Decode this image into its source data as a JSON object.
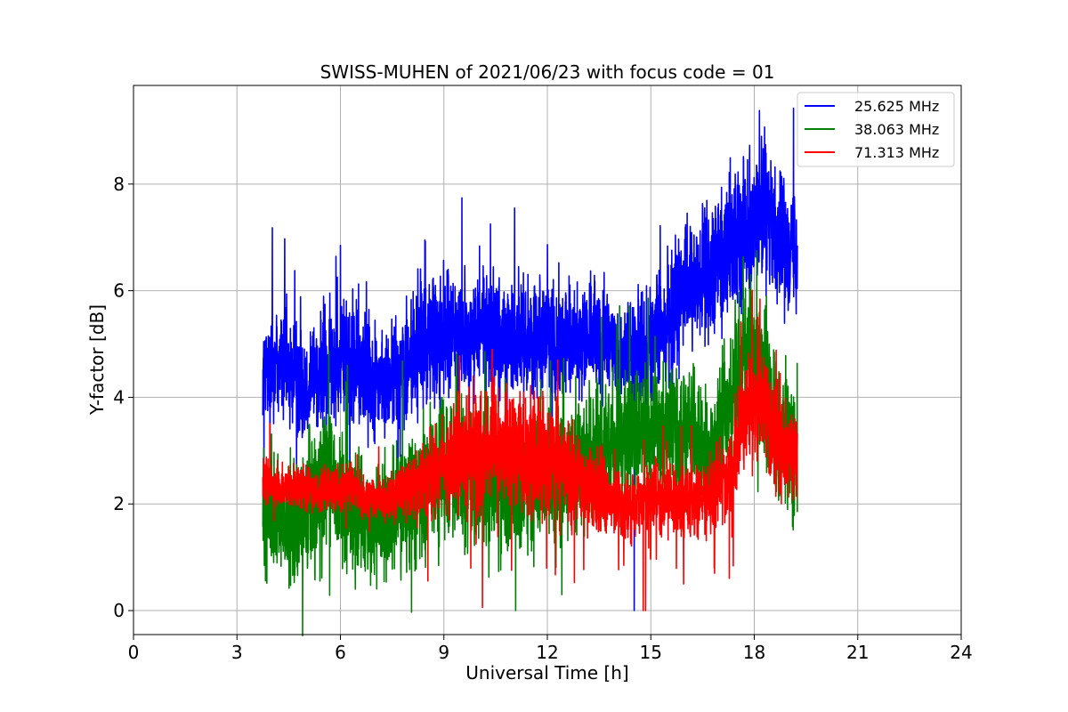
{
  "chart_data": {
    "type": "line",
    "title": "SWISS-MUHEN of 2021/06/23 with focus code = 01",
    "xlabel": "Universal Time [h]",
    "ylabel": "Y-factor [dB]",
    "xlim": [
      0,
      24
    ],
    "ylim": [
      -0.45,
      9.85
    ],
    "xticks": [
      0,
      3,
      6,
      9,
      12,
      15,
      18,
      21,
      24
    ],
    "yticks": [
      0,
      2,
      4,
      6,
      8
    ],
    "grid": true,
    "legend_position": "top-right",
    "series": [
      {
        "name": "25.625 MHz",
        "color": "#0000ff",
        "x": [
          3.75,
          4.25,
          4.75,
          5.25,
          5.75,
          6.25,
          6.75,
          7.25,
          7.75,
          8.25,
          8.75,
          9.25,
          9.75,
          10.25,
          10.75,
          11.25,
          11.75,
          12.25,
          12.75,
          13.25,
          13.75,
          14.25,
          14.75,
          15.25,
          15.75,
          16.25,
          16.75,
          17.25,
          17.75,
          18.25,
          18.75,
          19.25
        ],
        "y": [
          4.5,
          4.7,
          4.3,
          4.4,
          4.6,
          4.7,
          4.4,
          4.2,
          4.5,
          4.9,
          5.2,
          5.2,
          5.1,
          5.3,
          5.0,
          5.1,
          5.2,
          5.0,
          5.0,
          5.1,
          5.0,
          4.8,
          4.9,
          5.2,
          5.8,
          6.2,
          6.3,
          6.9,
          7.2,
          7.5,
          7.0,
          6.8
        ],
        "spread": [
          0.7,
          0.9,
          0.8,
          0.8,
          0.8,
          0.9,
          0.8,
          0.7,
          0.8,
          0.9,
          0.9,
          0.9,
          0.8,
          0.9,
          0.8,
          0.8,
          0.8,
          0.8,
          0.7,
          0.8,
          0.7,
          0.7,
          0.8,
          0.8,
          0.9,
          0.9,
          0.9,
          0.9,
          1.0,
          1.0,
          0.9,
          0.8
        ],
        "extremes": [
          [
            11.05,
            7.55
          ],
          [
            14.52,
            0.0
          ],
          [
            18.15,
            9.38
          ],
          [
            10.35,
            7.25
          ],
          [
            8.45,
            6.95
          ],
          [
            6.0,
            6.85
          ]
        ]
      },
      {
        "name": "38.063 MHz",
        "color": "#008000",
        "x": [
          3.75,
          4.25,
          4.75,
          5.25,
          5.75,
          6.25,
          6.75,
          7.25,
          7.75,
          8.25,
          8.75,
          9.25,
          9.75,
          10.25,
          10.75,
          11.25,
          11.75,
          12.25,
          12.75,
          13.25,
          13.75,
          14.25,
          14.75,
          15.25,
          15.75,
          16.25,
          16.75,
          17.25,
          17.75,
          18.25,
          18.75,
          19.25
        ],
        "y": [
          2.0,
          1.6,
          1.6,
          2.2,
          2.5,
          2.0,
          1.6,
          1.7,
          1.9,
          2.2,
          2.5,
          2.6,
          2.5,
          2.4,
          2.4,
          2.5,
          2.3,
          2.6,
          2.6,
          3.0,
          3.1,
          3.2,
          3.3,
          3.4,
          3.3,
          3.2,
          3.1,
          3.9,
          4.8,
          4.4,
          3.2,
          3.0
        ],
        "spread": [
          0.9,
          0.8,
          0.8,
          1.0,
          1.0,
          0.9,
          0.8,
          0.8,
          0.9,
          0.9,
          1.0,
          1.0,
          1.0,
          0.9,
          0.9,
          1.0,
          0.9,
          1.0,
          0.9,
          0.9,
          0.9,
          0.9,
          0.9,
          0.9,
          0.9,
          0.9,
          0.8,
          0.9,
          1.0,
          1.0,
          0.9,
          0.9
        ],
        "extremes": [
          [
            11.08,
            0.0
          ],
          [
            12.42,
            0.3
          ],
          [
            17.9,
            6.3
          ],
          [
            18.35,
            5.9
          ],
          [
            6.2,
            4.6
          ],
          [
            9.35,
            4.4
          ]
        ]
      },
      {
        "name": "71.313 MHz",
        "color": "#ff0000",
        "x": [
          3.75,
          4.25,
          4.75,
          5.25,
          5.75,
          6.25,
          6.75,
          7.25,
          7.75,
          8.25,
          8.75,
          9.25,
          9.75,
          10.25,
          10.75,
          11.25,
          11.75,
          12.25,
          12.75,
          13.25,
          13.75,
          14.25,
          14.75,
          15.25,
          15.75,
          16.25,
          16.75,
          17.25,
          17.75,
          18.25,
          18.75,
          19.25
        ],
        "y": [
          2.4,
          2.3,
          2.3,
          2.2,
          2.3,
          2.3,
          2.1,
          2.1,
          2.2,
          2.4,
          2.6,
          2.8,
          3.0,
          3.1,
          3.0,
          2.9,
          2.8,
          3.0,
          2.5,
          2.3,
          2.1,
          2.0,
          2.0,
          2.1,
          2.1,
          2.1,
          2.2,
          2.6,
          3.8,
          3.8,
          3.1,
          2.8
        ],
        "spread": [
          0.4,
          0.3,
          0.3,
          0.3,
          0.3,
          0.3,
          0.3,
          0.3,
          0.4,
          0.5,
          0.6,
          0.7,
          0.8,
          0.8,
          0.8,
          0.8,
          0.8,
          0.8,
          0.7,
          0.6,
          0.5,
          0.5,
          0.5,
          0.5,
          0.5,
          0.5,
          0.5,
          0.6,
          0.8,
          0.8,
          0.7,
          0.6
        ],
        "extremes": [
          [
            10.4,
            4.9
          ],
          [
            14.78,
            0.0
          ],
          [
            14.85,
            0.0
          ],
          [
            12.3,
            4.7
          ],
          [
            15.95,
            0.5
          ],
          [
            16.85,
            0.7
          ],
          [
            18.1,
            5.5
          ]
        ]
      }
    ]
  }
}
